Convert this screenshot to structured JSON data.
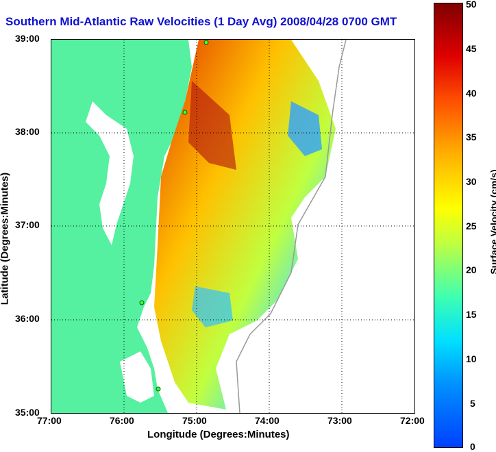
{
  "title": "Southern Mid-Atlantic Raw Velocities (1 Day Avg) 2008/04/28 0700 GMT",
  "xaxis": {
    "label": "Longitude (Degrees:Minutes)",
    "ticks": [
      "77:00",
      "76:00",
      "75:00",
      "74:00",
      "73:00",
      "72:00"
    ]
  },
  "yaxis": {
    "label": "Latitude (Degrees:Minutes)",
    "ticks": [
      "39:00",
      "38:00",
      "37:00",
      "36:00",
      "35:00"
    ]
  },
  "colorbar": {
    "label": "Surface Velocity (cm/s)",
    "ticks": [
      "50",
      "45",
      "40",
      "35",
      "30",
      "25",
      "20",
      "15",
      "10",
      "5",
      "0"
    ]
  },
  "colors": {
    "land": "#55f0a0",
    "title": "#1010d0",
    "coast": "#ffffff"
  }
}
